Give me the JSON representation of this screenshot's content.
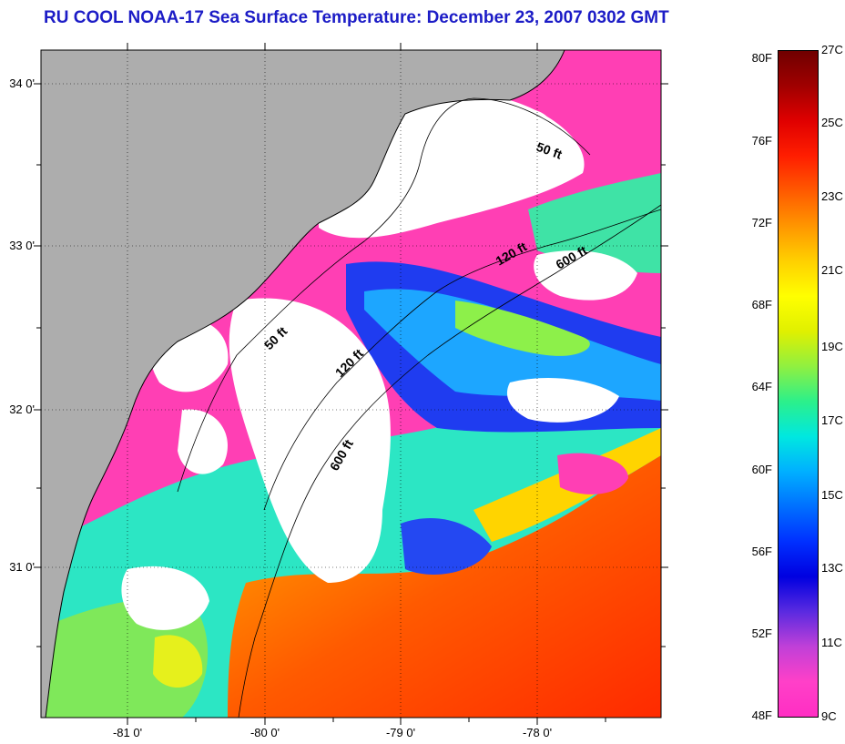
{
  "title": "RU COOL  NOAA-17  Sea Surface Temperature:  December 23, 2007 0302 GMT",
  "map": {
    "lat_labels": [
      "34 0'",
      "33 0'",
      "32 0'",
      "31 0'"
    ],
    "lon_labels": [
      "-81 0'",
      "-80 0'",
      "-79 0'",
      "-78 0'"
    ],
    "isobath_labels": [
      "50 ft",
      "120 ft",
      "600 ft",
      "50 ft",
      "120 ft",
      "600 ft"
    ],
    "colors": {
      "land": "#adadad",
      "cloud": "#ffffff",
      "cold": "#ff3fb4",
      "warm": "#ff5010"
    }
  },
  "colorbar": {
    "fahrenheit_labels": [
      "80F",
      "76F",
      "72F",
      "68F",
      "64F",
      "60F",
      "56F",
      "52F",
      "48F"
    ],
    "celsius_labels": [
      "27C",
      "25C",
      "23C",
      "21C",
      "19C",
      "17C",
      "15C",
      "13C",
      "11C",
      "9C"
    ],
    "stops": [
      "#ff2ec3",
      "#ff40c8",
      "#c040d8",
      "#5a2ae0",
      "#0000e0",
      "#0030ff",
      "#0070ff",
      "#00b0ff",
      "#00e8e0",
      "#2cf08a",
      "#90f040",
      "#e0f000",
      "#ffff00",
      "#ffd000",
      "#ff9600",
      "#ff5a00",
      "#ff1e00",
      "#e00000",
      "#a00000",
      "#700000"
    ]
  }
}
